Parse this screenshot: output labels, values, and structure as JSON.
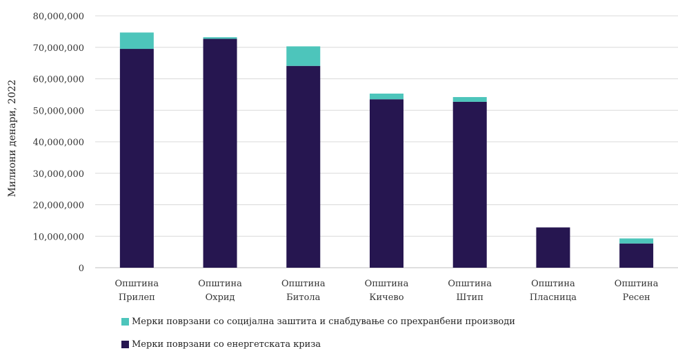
{
  "chart_data": {
    "type": "bar",
    "stacked": true,
    "categories": [
      [
        "Општина",
        "Прилеп"
      ],
      [
        "Општина",
        "Охрид"
      ],
      [
        "Општина",
        "Битола"
      ],
      [
        "Општина",
        "Кичево"
      ],
      [
        "Општина",
        "Штип"
      ],
      [
        "Општина",
        "Пласница"
      ],
      [
        "Општина",
        "Ресен"
      ]
    ],
    "series": [
      {
        "name": "Мерки поврзани со енергетската криза",
        "color": "#261650",
        "values": [
          69500000,
          72700000,
          64100000,
          53500000,
          52700000,
          12800000,
          7700000
        ]
      },
      {
        "name": "Мерки поврзани со социјална заштита и снабдување со прехранбени производи",
        "color": "#4dc5bb",
        "values": [
          5200000,
          500000,
          6200000,
          1800000,
          1500000,
          0,
          1600000
        ]
      }
    ],
    "ylabel": "Милиони денари, 2022",
    "xlabel": "",
    "ylim": [
      0,
      80000000
    ],
    "yticks": [
      0,
      10000000,
      20000000,
      30000000,
      40000000,
      50000000,
      60000000,
      70000000,
      80000000
    ],
    "ytick_labels": [
      "0",
      "10,000,000",
      "20,000,000",
      "30,000,000",
      "40,000,000",
      "50,000,000",
      "60,000,000",
      "70,000,000",
      "80,000,000"
    ],
    "grid": true,
    "legend_position": "bottom"
  }
}
